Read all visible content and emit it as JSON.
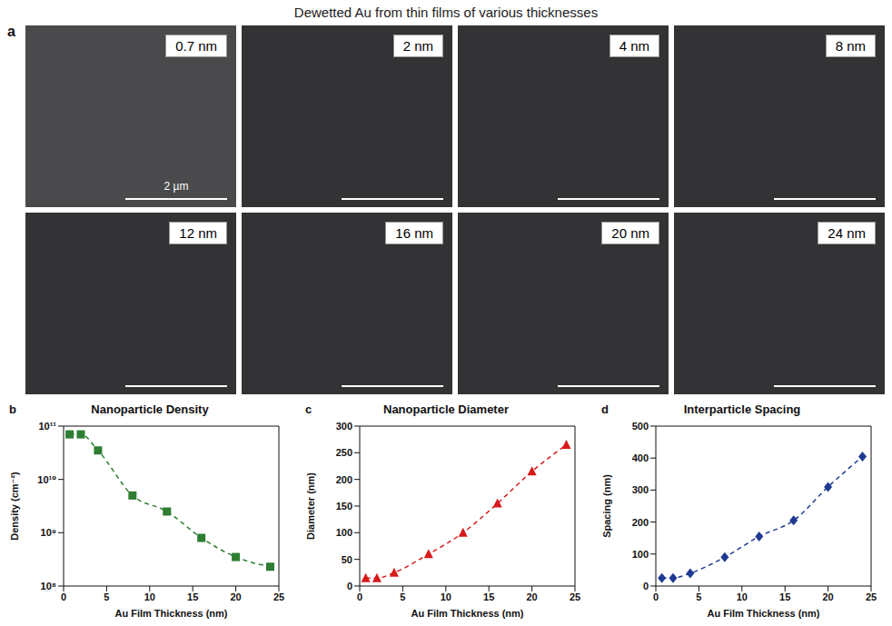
{
  "title": "Dewetted Au from thin films of various thicknesses",
  "panel_a": {
    "letter": "a",
    "labels": [
      "0.7 nm",
      "2 nm",
      "4 nm",
      "8 nm",
      "12 nm",
      "16 nm",
      "20 nm",
      "24 nm"
    ],
    "scale_bar": "2 µm"
  },
  "chart_data": [
    {
      "letter": "b",
      "type": "line",
      "title": "Nanoparticle Density",
      "x_label": "Au Film Thickness (nm)",
      "y_label": "Density (cm⁻²)",
      "x": [
        0.7,
        2,
        4,
        8,
        12,
        16,
        20,
        24
      ],
      "values": [
        70000000000,
        70000000000,
        35000000000,
        5000000000,
        2500000000,
        800000000,
        350000000,
        230000000
      ],
      "color": "#2e7d32",
      "marker": "square",
      "line_style": "dashed",
      "log": "y",
      "grid": false,
      "xlim": [
        0,
        25
      ],
      "xticks": [
        0,
        5,
        10,
        15,
        20,
        25
      ],
      "ylim": [
        100000000,
        100000000000
      ],
      "yticks": [
        {
          "value": 100000000,
          "label": "10⁸"
        },
        {
          "value": 1000000000,
          "label": "10⁹"
        },
        {
          "value": 10000000000,
          "label": "10¹⁰"
        },
        {
          "value": 100000000000,
          "label": "10¹¹"
        }
      ]
    },
    {
      "letter": "c",
      "type": "line",
      "title": "Nanoparticle Diameter",
      "x_label": "Au Film Thickness (nm)",
      "y_label": "Diameter (nm)",
      "x": [
        0.7,
        2,
        4,
        8,
        12,
        16,
        20,
        24
      ],
      "values": [
        15,
        15,
        25,
        60,
        100,
        155,
        215,
        265
      ],
      "color": "#d7191c",
      "marker": "triangle",
      "line_style": "dashed",
      "grid": false,
      "xlim": [
        0,
        25
      ],
      "xticks": [
        0,
        5,
        10,
        15,
        20,
        25
      ],
      "ylim": [
        0,
        300
      ],
      "yticks": [
        0,
        50,
        100,
        150,
        200,
        250,
        300
      ]
    },
    {
      "letter": "d",
      "type": "line",
      "title": "Interparticle Spacing",
      "x_label": "Au Film Thickness (nm)",
      "y_label": "Spacing (nm)",
      "x": [
        0.7,
        2,
        4,
        8,
        12,
        16,
        20,
        24
      ],
      "values": [
        25,
        25,
        40,
        90,
        155,
        205,
        310,
        405
      ],
      "color": "#1f3a93",
      "marker": "diamond",
      "line_style": "dashed",
      "grid": false,
      "xlim": [
        0,
        25
      ],
      "xticks": [
        0,
        5,
        10,
        15,
        20,
        25
      ],
      "ylim": [
        0,
        500
      ],
      "yticks": [
        0,
        100,
        200,
        300,
        400,
        500
      ]
    }
  ]
}
